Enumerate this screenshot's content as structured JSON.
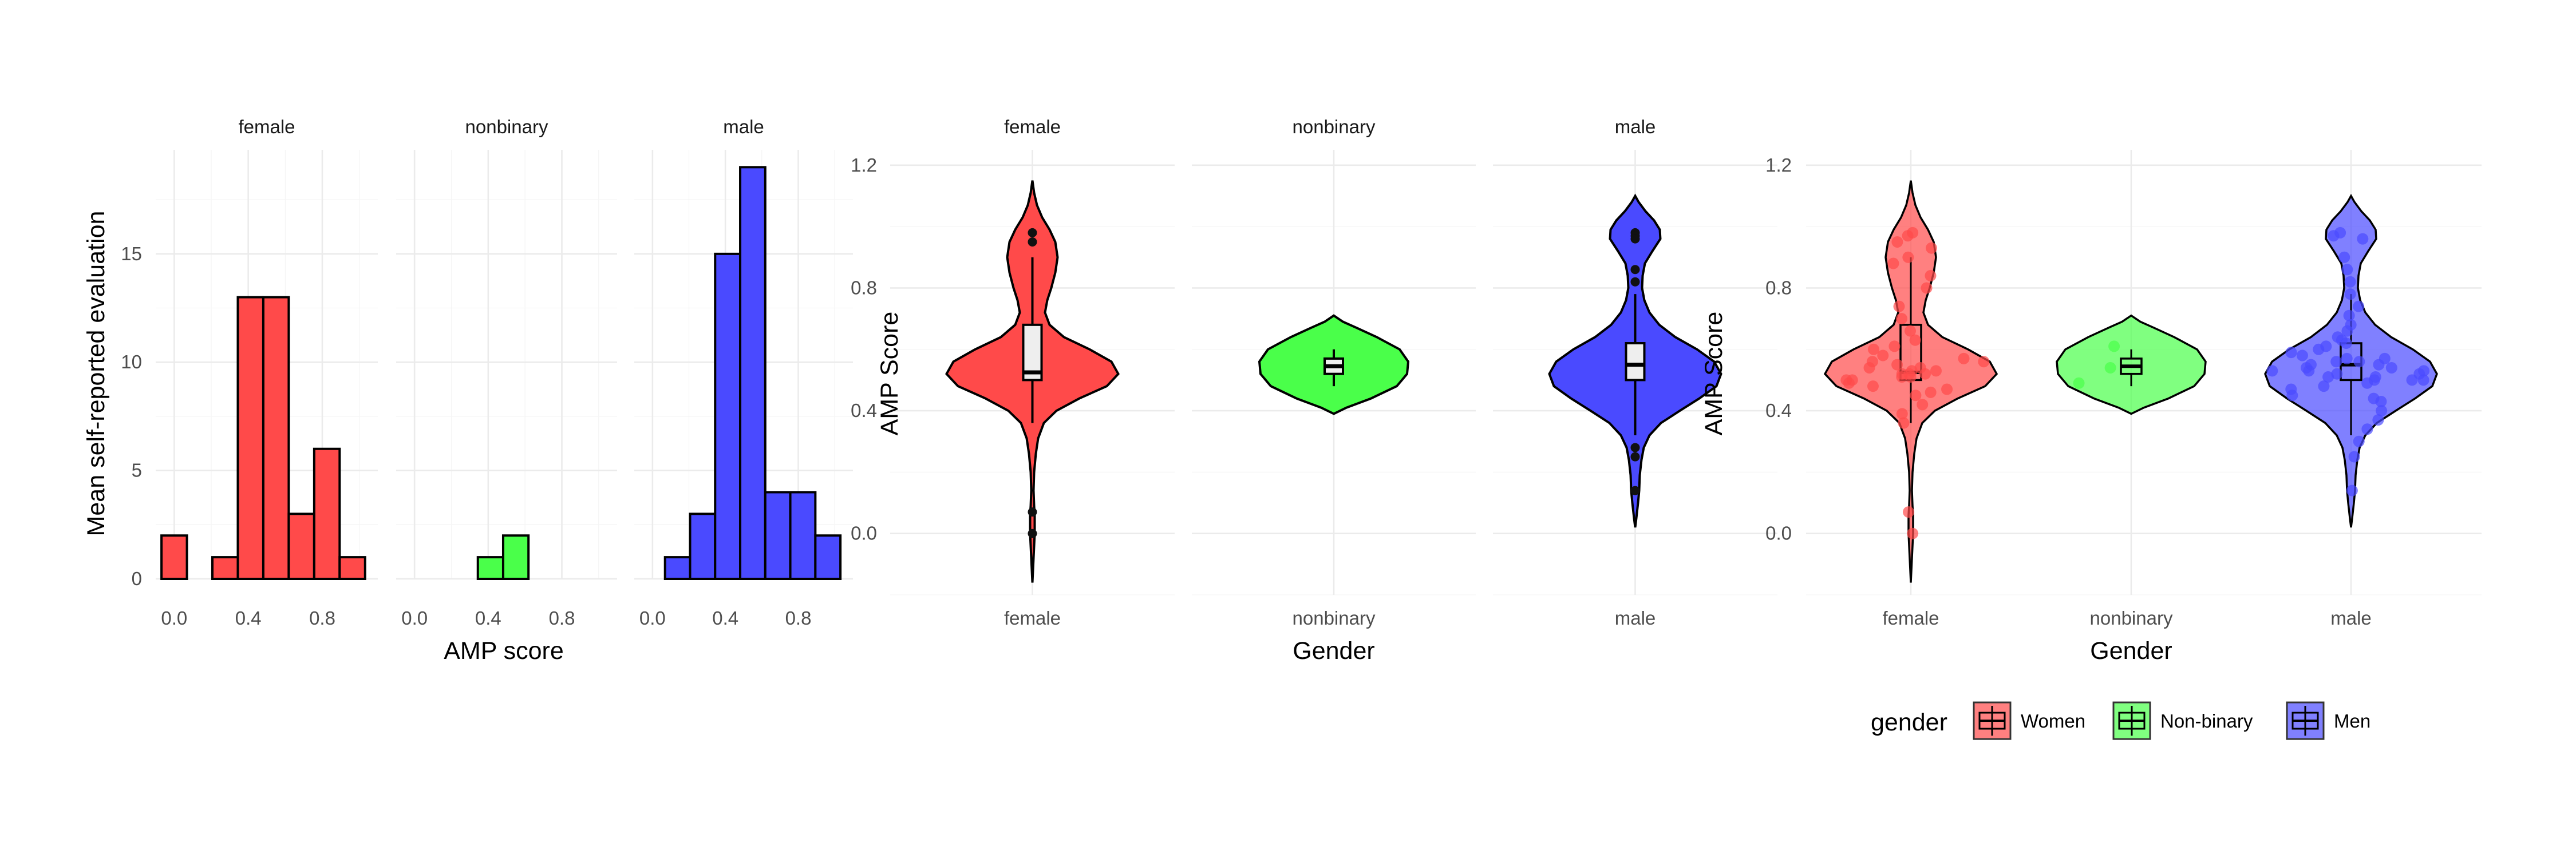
{
  "colors": {
    "female": "#ff4a4a",
    "nonbinary": "#4aff4a",
    "male": "#4a4aff"
  },
  "chart_data": [
    {
      "type": "histogram",
      "facets": [
        "female",
        "nonbinary",
        "male"
      ],
      "xlabel": "AMP score",
      "ylabel": "Mean self-reported evaluation",
      "x_ticks": [
        "0.0",
        "0.4",
        "0.8"
      ],
      "y_ticks": [
        "0",
        "5",
        "10",
        "15"
      ],
      "xlim": [
        -0.1,
        1.1
      ],
      "ylim": [
        0,
        19.8
      ],
      "bin_width": 0.1375,
      "bin_starts": [
        -0.06875,
        0.06875,
        0.20625,
        0.34375,
        0.48125,
        0.61875,
        0.75625,
        0.89375
      ],
      "counts": {
        "female": [
          2,
          0,
          1,
          13,
          13,
          3,
          6,
          1
        ],
        "nonbinary": [
          0,
          0,
          0,
          1,
          2,
          0,
          0,
          0
        ],
        "male": [
          0,
          1,
          3,
          15,
          19,
          4,
          4,
          2
        ]
      }
    },
    {
      "type": "violin",
      "facets": [
        "female",
        "nonbinary",
        "male"
      ],
      "categories": [
        "female",
        "nonbinary",
        "male"
      ],
      "xlabel": "Gender",
      "ylabel": "AMP Score",
      "y_ticks": [
        "0.0",
        "0.4",
        "0.8",
        "1.2"
      ],
      "ylim": [
        -0.2,
        1.25
      ],
      "box": {
        "female": {
          "min": 0.36,
          "q1": 0.5,
          "median": 0.525,
          "q3": 0.68,
          "max": 0.9
        },
        "nonbinary": {
          "min": 0.48,
          "q1": 0.52,
          "median": 0.545,
          "q3": 0.57,
          "max": 0.6
        },
        "male": {
          "min": 0.32,
          "q1": 0.5,
          "median": 0.55,
          "q3": 0.62,
          "max": 0.78
        }
      },
      "outliers": {
        "female": [
          0.98,
          0.95,
          0.07,
          0.0
        ],
        "nonbinary": [],
        "male": [
          0.98,
          0.97,
          0.96,
          0.86,
          0.82,
          0.28,
          0.25,
          0.14
        ]
      }
    },
    {
      "type": "violin",
      "categories": [
        "female",
        "nonbinary",
        "male"
      ],
      "xlabel": "Gender",
      "ylabel": "AMP Score",
      "y_ticks": [
        "0.0",
        "0.4",
        "0.8",
        "1.2"
      ],
      "ylim": [
        -0.2,
        1.25
      ],
      "legend": {
        "title": "gender",
        "position": "bottom",
        "entries": [
          "Women",
          "Non-binary",
          "Men"
        ]
      },
      "points": {
        "female": [
          0.52,
          0.54,
          0.5,
          0.56,
          0.51,
          0.53,
          0.49,
          0.57,
          0.52,
          0.55,
          0.58,
          0.47,
          0.53,
          0.5,
          0.51,
          0.54,
          0.46,
          0.6,
          0.63,
          0.66,
          0.7,
          0.74,
          0.8,
          0.84,
          0.88,
          0.9,
          0.93,
          0.95,
          0.97,
          0.98,
          0.42,
          0.39,
          0.36,
          0.56,
          0.52,
          0.48,
          0.45,
          0.61,
          0.07,
          0.0
        ],
        "nonbinary": [
          0.54,
          0.61,
          0.49
        ],
        "male": [
          0.52,
          0.55,
          0.5,
          0.57,
          0.53,
          0.49,
          0.56,
          0.54,
          0.51,
          0.58,
          0.6,
          0.62,
          0.47,
          0.45,
          0.52,
          0.55,
          0.5,
          0.53,
          0.64,
          0.66,
          0.68,
          0.71,
          0.74,
          0.78,
          0.82,
          0.86,
          0.9,
          0.96,
          0.97,
          0.98,
          0.43,
          0.4,
          0.37,
          0.34,
          0.3,
          0.25,
          0.14,
          0.56,
          0.59,
          0.48,
          0.51,
          0.54,
          0.63,
          0.44,
          0.57,
          0.61,
          0.5,
          0.53
        ]
      }
    }
  ]
}
